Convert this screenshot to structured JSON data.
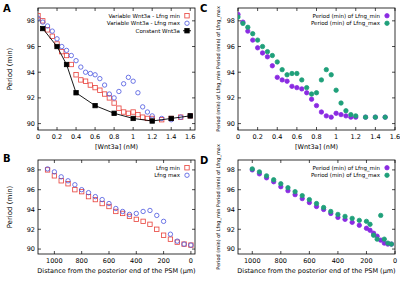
{
  "chart_data": [
    {
      "type": "scatter",
      "title": "A",
      "x_label": "[Wnt3a] (nM)",
      "y_label": "Period (min)",
      "xlim": [
        0,
        1.65
      ],
      "ylim": [
        89.5,
        99
      ],
      "xticks": [
        0,
        0.2,
        0.4,
        0.6,
        0.8,
        1,
        1.2,
        1.4,
        1.6
      ],
      "yticks": [
        90,
        92,
        94,
        96,
        98
      ],
      "grid": false,
      "legend": "upper right",
      "x": [
        0,
        0.05,
        0.1,
        0.15,
        0.2,
        0.25,
        0.3,
        0.35,
        0.4,
        0.45,
        0.5,
        0.55,
        0.6,
        0.65,
        0.7,
        0.75,
        0.8,
        0.85,
        0.9,
        0.95,
        1.0,
        1.05,
        1.1,
        1.15,
        1.2,
        1.3,
        1.4,
        1.5,
        1.6
      ],
      "series": [
        {
          "name": "Variable Wnt3a - Lfng min",
          "color": "#e8403a",
          "marker": "square",
          "values": [
            98.4,
            98.0,
            97.3,
            96.8,
            96.2,
            95.6,
            95.3,
            94.6,
            93.8,
            93.4,
            93.3,
            93.0,
            92.8,
            92.6,
            92.3,
            92.0,
            91.6,
            91.2,
            90.9,
            90.8,
            90.9,
            90.7,
            90.5,
            90.4,
            90.4,
            90.3,
            90.4,
            90.5,
            90.6
          ]
        },
        {
          "name": "Variable Wnt3a - Lfng max",
          "color": "#4a55e0",
          "marker": "circle",
          "values": [
            98.2,
            97.9,
            97.6,
            97.2,
            96.6,
            96.0,
            95.7,
            95.3,
            94.9,
            94.4,
            94.0,
            93.9,
            93.8,
            93.5,
            93.0,
            92.3,
            92.0,
            92.5,
            93.1,
            93.6,
            93.3,
            92.4,
            91.3,
            90.9,
            90.6,
            90.4,
            90.3,
            90.5,
            90.6
          ]
        },
        {
          "name": "Constant Wnt3a",
          "color": "#000000",
          "marker": "square",
          "line_style": "solid",
          "type": "line",
          "x": [
            0.05,
            0.2,
            0.3,
            0.4,
            0.6,
            0.8,
            1.0,
            1.2,
            1.4,
            1.6
          ],
          "values": [
            97.4,
            96.0,
            94.6,
            92.4,
            91.4,
            90.8,
            90.4,
            90.2,
            90.4,
            90.6
          ]
        }
      ]
    },
    {
      "type": "scatter",
      "title": "B",
      "x_label": "Distance from the posterior end of the PSM (μm)",
      "y_label": "Period (min)",
      "xlim": [
        1120,
        -30
      ],
      "ylim": [
        89.5,
        99
      ],
      "xticks": [
        1000,
        800,
        600,
        400,
        200,
        0
      ],
      "yticks": [
        90,
        92,
        94,
        96,
        98
      ],
      "grid": false,
      "legend": "upper right",
      "x": [
        1050,
        1000,
        950,
        900,
        850,
        800,
        750,
        700,
        650,
        600,
        550,
        500,
        450,
        400,
        350,
        300,
        250,
        200,
        150,
        100,
        50,
        0
      ],
      "series": [
        {
          "name": "Lfng min",
          "color": "#e8403a",
          "marker": "square",
          "values": [
            98.0,
            97.4,
            96.9,
            96.6,
            96.0,
            95.8,
            95.3,
            95.0,
            94.6,
            94.3,
            93.8,
            93.6,
            93.3,
            93.0,
            92.8,
            92.5,
            92.0,
            91.4,
            91.0,
            90.7,
            90.5,
            90.4
          ]
        },
        {
          "name": "Lfng max",
          "color": "#4a55e0",
          "marker": "circle",
          "values": [
            98.1,
            97.8,
            97.3,
            96.9,
            96.5,
            96.0,
            95.7,
            95.3,
            95.0,
            94.6,
            94.1,
            93.8,
            93.5,
            93.6,
            93.8,
            93.9,
            93.4,
            92.8,
            91.5,
            90.8,
            90.5,
            90.4
          ]
        }
      ]
    },
    {
      "type": "scatter",
      "title": "C",
      "x_label": "[Wnt3a] (nM)",
      "y_label": "Period (min) of Lfng_min Period (min) of Lfng_max",
      "xlim": [
        0,
        1.6
      ],
      "ylim": [
        89.5,
        99
      ],
      "xticks": [
        0,
        0.2,
        0.4,
        0.6,
        0.8,
        1,
        1.2,
        1.4,
        1.6
      ],
      "yticks": [
        90,
        92,
        94,
        96,
        98
      ],
      "grid": false,
      "legend": "upper right",
      "x": [
        0,
        0.05,
        0.1,
        0.15,
        0.2,
        0.25,
        0.3,
        0.35,
        0.4,
        0.45,
        0.5,
        0.55,
        0.6,
        0.65,
        0.7,
        0.75,
        0.8,
        0.85,
        0.9,
        0.95,
        1.0,
        1.05,
        1.1,
        1.15,
        1.2,
        1.3,
        1.4,
        1.5
      ],
      "series": [
        {
          "name": "Period (min) of Lfng_min",
          "color": "#8a2be2",
          "marker": "circle",
          "values": [
            98.5,
            97.9,
            97.2,
            96.5,
            95.9,
            95.5,
            95.2,
            94.5,
            93.6,
            93.4,
            93.3,
            92.9,
            92.8,
            92.7,
            92.4,
            91.9,
            91.4,
            90.9,
            90.6,
            90.5,
            90.8,
            90.7,
            90.6,
            90.5,
            90.5,
            90.5,
            90.5,
            90.5
          ]
        },
        {
          "name": "Period (min) of Lfng_max",
          "color": "#1fa07a",
          "marker": "circle",
          "values": [
            98.3,
            97.8,
            97.5,
            97.0,
            96.5,
            96.0,
            95.6,
            95.3,
            94.8,
            94.2,
            93.8,
            93.9,
            93.9,
            93.4,
            92.8,
            92.3,
            92.4,
            93.4,
            94.2,
            93.8,
            92.6,
            91.6,
            91.0,
            90.7,
            90.6,
            90.5,
            90.5,
            90.5
          ]
        }
      ]
    },
    {
      "type": "scatter",
      "title": "D",
      "x_label": "Distance from the posterior end of the PSM (μm)",
      "y_label": "Period (min) of Lfng_min Period (min) of Lfng_max",
      "xlim": [
        1100,
        0
      ],
      "ylim": [
        89.5,
        99
      ],
      "xticks": [
        1000,
        800,
        600,
        400,
        200,
        0
      ],
      "yticks": [
        90,
        92,
        94,
        96,
        98
      ],
      "grid": false,
      "legend": "upper right",
      "x": [
        1000,
        950,
        900,
        850,
        800,
        750,
        700,
        650,
        600,
        550,
        500,
        450,
        400,
        350,
        300,
        250,
        200,
        175,
        150,
        125,
        100,
        75,
        50,
        25
      ],
      "series": [
        {
          "name": "Period (min) of Lfng_min",
          "color": "#8a2be2",
          "marker": "circle",
          "values": [
            98.0,
            97.6,
            97.2,
            96.8,
            96.3,
            95.9,
            95.5,
            95.1,
            94.7,
            94.3,
            94.0,
            93.6,
            93.2,
            93.0,
            92.7,
            92.4,
            92.1,
            91.9,
            91.6,
            91.3,
            90.9,
            90.6,
            90.5,
            90.5
          ]
        },
        {
          "name": "Period (min) of Lfng_max",
          "color": "#1fa07a",
          "marker": "circle",
          "values": [
            98.1,
            97.8,
            97.4,
            97.0,
            96.6,
            96.2,
            95.8,
            95.4,
            95.0,
            94.6,
            94.2,
            93.8,
            93.5,
            93.3,
            93.1,
            92.9,
            92.8,
            92.5,
            91.4,
            91.0,
            93.4,
            91.0,
            90.6,
            90.5
          ]
        }
      ]
    }
  ]
}
